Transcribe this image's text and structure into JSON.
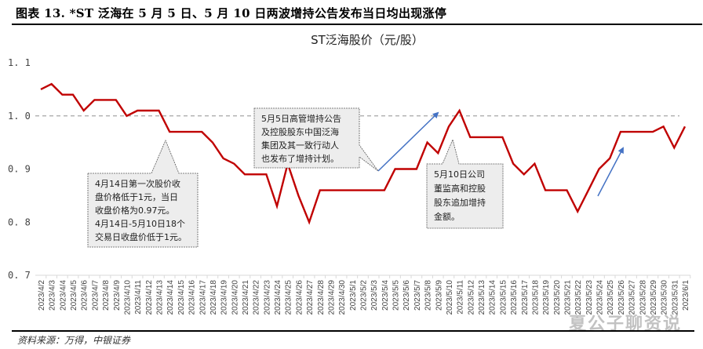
{
  "figure": {
    "title": "图表 13. *ST 泛海在 5 月 5 日、5 月 10 日两波增持公告发布当日均出现涨停",
    "source": "资料来源：万得，中银证券",
    "watermark": "夏公子聊资说"
  },
  "colors": {
    "line": "#C00000",
    "reference_line": "#A6A6A6",
    "arrow": "#4472C4",
    "callout_fill": "#EDEDED",
    "callout_border": "#595959"
  },
  "callouts": [
    {
      "id": "callout-apr14",
      "lines": [
        "4月14日第一次股价收",
        "盘价格低于1元，当日",
        "收盘价格为0.97元。",
        "4月14日-5月10日18个",
        "交易日收盘价低于1元。"
      ]
    },
    {
      "id": "callout-may5",
      "lines": [
        "5月5日高管增持公告",
        "及控股股东中国泛海",
        "集团及其一致行动人",
        "也发布了增持计划。"
      ]
    },
    {
      "id": "callout-may10",
      "lines": [
        "5月10日公司",
        "董监高和控股",
        "股东追加增持",
        "金额。"
      ]
    }
  ],
  "chart_data": {
    "type": "line",
    "title": "ST泛海股价（元/股）",
    "xlabel": "",
    "ylabel": "",
    "ylim": [
      0.7,
      1.1
    ],
    "yticks": [
      "1.1",
      "1.0",
      "0.9",
      "0.8",
      "0.7"
    ],
    "grid": false,
    "legend": null,
    "reference_line": {
      "y": 1.0,
      "style": "dashed"
    },
    "categories": [
      "2023/4/2",
      "2023/4/3",
      "2023/4/4",
      "2023/4/5",
      "2023/4/6",
      "2023/4/7",
      "2023/4/8",
      "2023/4/9",
      "2023/4/10",
      "2023/4/11",
      "2023/4/12",
      "2023/4/13",
      "2023/4/14",
      "2023/4/15",
      "2023/4/16",
      "2023/4/17",
      "2023/4/18",
      "2023/4/19",
      "2023/4/20",
      "2023/4/21",
      "2023/4/22",
      "2023/4/23",
      "2023/4/24",
      "2023/4/25",
      "2023/4/26",
      "2023/4/27",
      "2023/4/28",
      "2023/4/29",
      "2023/4/30",
      "2023/5/1",
      "2023/5/2",
      "2023/5/3",
      "2023/5/4",
      "2023/5/5",
      "2023/5/6",
      "2023/5/7",
      "2023/5/8",
      "2023/5/9",
      "2023/5/10",
      "2023/5/11",
      "2023/5/12",
      "2023/5/13",
      "2023/5/14",
      "2023/5/15",
      "2023/5/16",
      "2023/5/17",
      "2023/5/18",
      "2023/5/19",
      "2023/5/20",
      "2023/5/21",
      "2023/5/22",
      "2023/5/23",
      "2023/5/24",
      "2023/5/25",
      "2023/5/26",
      "2023/5/27",
      "2023/5/28",
      "2023/5/29",
      "2023/5/30",
      "2023/5/31",
      "2023/6/1"
    ],
    "series": [
      {
        "name": "ST泛海股价",
        "values": [
          1.05,
          1.06,
          1.04,
          1.04,
          1.01,
          1.03,
          1.03,
          1.03,
          1.0,
          1.01,
          1.01,
          1.01,
          0.97,
          0.97,
          0.97,
          0.97,
          0.95,
          0.92,
          0.91,
          0.89,
          0.89,
          0.89,
          0.83,
          0.91,
          0.85,
          0.8,
          0.86,
          0.86,
          0.86,
          0.86,
          0.86,
          0.86,
          0.86,
          0.9,
          0.9,
          0.9,
          0.95,
          0.93,
          0.98,
          1.01,
          0.96,
          0.96,
          0.96,
          0.96,
          0.91,
          0.89,
          0.91,
          0.86,
          0.86,
          0.86,
          0.82,
          0.86,
          0.9,
          0.92,
          0.97,
          0.97,
          0.97,
          0.97,
          0.98,
          0.94,
          0.98
        ]
      }
    ],
    "annotations": [
      {
        "text_ref": "callouts.0",
        "points_to": "2023/4/14"
      },
      {
        "text_ref": "callouts.1",
        "points_to": "2023/5/5",
        "arrow": "up-right"
      },
      {
        "text_ref": "callouts.2",
        "points_to": "2023/5/10"
      },
      {
        "arrow": "up-right",
        "near": "2023/5/22 - 2023/5/26"
      }
    ]
  }
}
